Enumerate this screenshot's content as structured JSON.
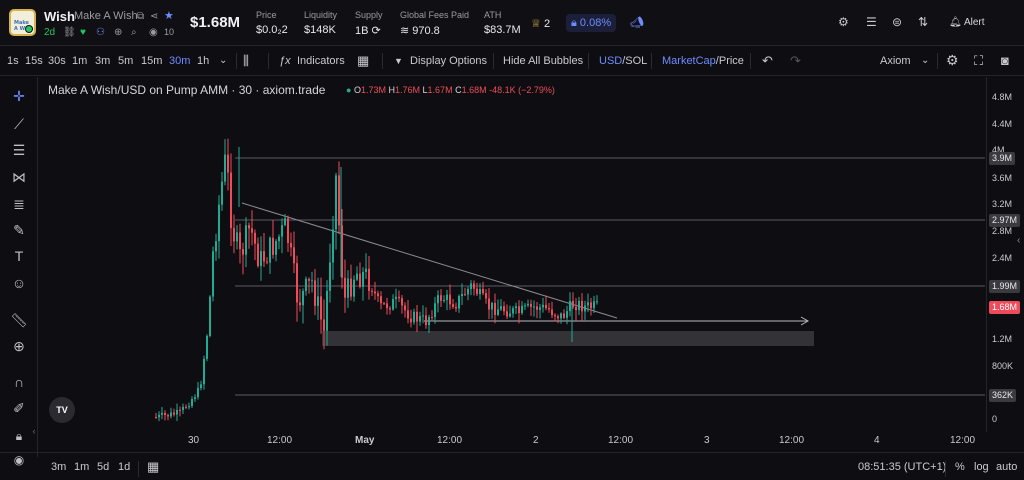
{
  "header": {
    "ticker": "Wish",
    "token_name": "Make A Wish",
    "logo_text": "Make A Wish",
    "age": "2d",
    "viewers": "10",
    "market_cap": "$1.68M",
    "stats": [
      {
        "label": "Price",
        "value": "$0.0₂2"
      },
      {
        "label": "Liquidity",
        "value": "$148K"
      },
      {
        "label": "Supply",
        "value": "1B ⟳"
      },
      {
        "label": "Global Fees Paid",
        "value": "≋ 970.8"
      },
      {
        "label": "ATH",
        "value": "$83.7M"
      }
    ],
    "crowns": "2",
    "percent_badge": "0.08%",
    "alert_label": "Alert"
  },
  "toolbar": {
    "timeframes": [
      "1s",
      "15s",
      "30s",
      "1m",
      "3m",
      "5m",
      "15m",
      "30m",
      "1h"
    ],
    "active_timeframe": "30m",
    "indicators_label": "Indicators",
    "display_options_label": "Display Options",
    "hide_bubbles_label": "Hide All Bubbles",
    "currency_usd": "USD",
    "currency_sol": "/SOL",
    "metric_mcap": "MarketCap",
    "metric_price": "/Price",
    "source_label": "Axiom"
  },
  "chart": {
    "legend_title": "Make A Wish/USD on Pump AMM · 30 · axiom.trade",
    "ohlc": {
      "o": "1.73M",
      "h": "1.76M",
      "l": "1.67M",
      "c": "1.68M",
      "change": "-48.1K (−2.79%)"
    },
    "price_labels": [
      "4.8M",
      "4.4M",
      "4M",
      "3.6M",
      "3.2M",
      "2.8M",
      "2.4M",
      "1.2M",
      "800K",
      "0"
    ],
    "price_tags": [
      {
        "text": "3.9M",
        "color": "#3a3a40"
      },
      {
        "text": "2.97M",
        "color": "#3a3a40"
      },
      {
        "text": "1.99M",
        "color": "#3a3a40"
      },
      {
        "text": "1.68M",
        "color": "#ef4b5a"
      },
      {
        "text": "362K",
        "color": "#3a3a40"
      }
    ],
    "time_labels": [
      "30",
      "12:00",
      "May",
      "12:00",
      "2",
      "12:00",
      "3",
      "12:00",
      "4",
      "12:00"
    ],
    "up_color": "#22ab94",
    "down_color": "#ef4b5a"
  },
  "bottom": {
    "ranges": [
      "3m",
      "1m",
      "5d",
      "1d"
    ],
    "clock": "08:51:35 (UTC+1)",
    "percent_label": "%",
    "log_label": "log",
    "auto_label": "auto"
  }
}
